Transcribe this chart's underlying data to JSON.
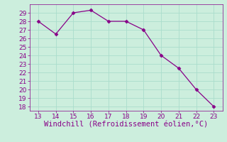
{
  "x": [
    13,
    14,
    15,
    16,
    17,
    18,
    19,
    20,
    21,
    22,
    23
  ],
  "y": [
    28,
    26.5,
    29,
    29.3,
    28,
    28,
    27,
    24,
    22.5,
    20,
    18
  ],
  "line_color": "#880088",
  "marker": "D",
  "marker_size": 2.5,
  "xlabel": "Windchill (Refroidissement éolien,°C)",
  "xlabel_color": "#880088",
  "xlim": [
    12.5,
    23.5
  ],
  "ylim": [
    17.5,
    30.0
  ],
  "xticks": [
    13,
    14,
    15,
    16,
    17,
    18,
    19,
    20,
    21,
    22,
    23
  ],
  "yticks": [
    18,
    19,
    20,
    21,
    22,
    23,
    24,
    25,
    26,
    27,
    28,
    29
  ],
  "bg_color": "#cceedd",
  "grid_color": "#aaddcc",
  "tick_color": "#880088",
  "tick_label_color": "#880088",
  "font_size_ticks": 6.5,
  "font_size_xlabel": 7.5
}
